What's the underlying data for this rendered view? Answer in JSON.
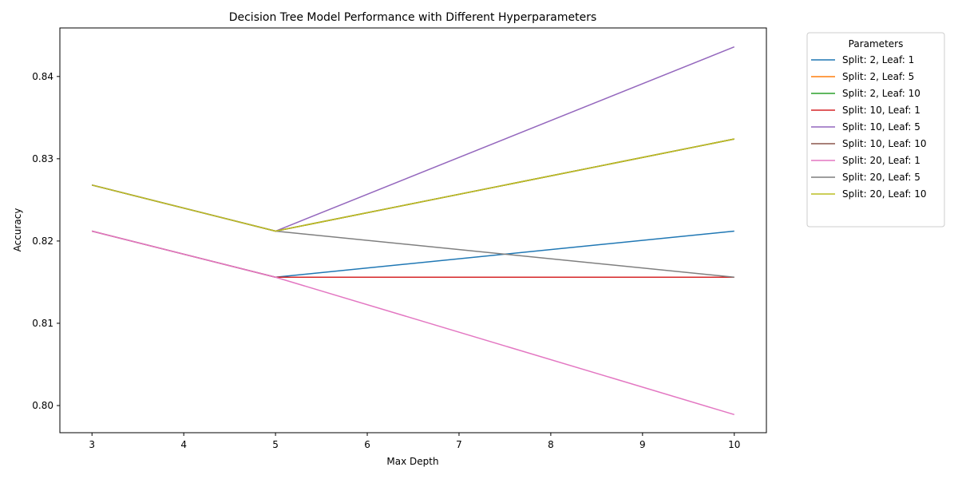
{
  "chart_data": {
    "type": "line",
    "title": "Decision Tree Model Performance with Different Hyperparameters",
    "xlabel": "Max Depth",
    "ylabel": "Accuracy",
    "x": [
      3,
      5,
      10
    ],
    "xlim": [
      2.65,
      10.35
    ],
    "ylim": [
      0.7967,
      0.8459
    ],
    "xticks": [
      3,
      4,
      5,
      6,
      7,
      8,
      9,
      10
    ],
    "yticks": [
      0.8,
      0.81,
      0.82,
      0.83,
      0.84
    ],
    "ytick_labels": [
      "0.80",
      "0.81",
      "0.82",
      "0.83",
      "0.84"
    ],
    "grid": false,
    "legend": {
      "title": "Parameters",
      "placement": "outside-upper-right"
    },
    "series": [
      {
        "name": "Split: 2, Leaf: 1",
        "color": "#1f77b4",
        "values": [
          0.8212,
          0.8156,
          0.8212
        ]
      },
      {
        "name": "Split: 2, Leaf: 5",
        "color": "#ff7f0e",
        "values": [
          0.8268,
          0.8212,
          0.8324
        ]
      },
      {
        "name": "Split: 2, Leaf: 10",
        "color": "#2ca02c",
        "values": [
          0.8268,
          0.8212,
          0.8324
        ]
      },
      {
        "name": "Split: 10, Leaf: 1",
        "color": "#d62728",
        "values": [
          0.8212,
          0.8156,
          0.8156
        ]
      },
      {
        "name": "Split: 10, Leaf: 5",
        "color": "#9467bd",
        "values": [
          0.8268,
          0.8212,
          0.8436
        ]
      },
      {
        "name": "Split: 10, Leaf: 10",
        "color": "#8c564b",
        "values": [
          0.8268,
          0.8212,
          0.8324
        ]
      },
      {
        "name": "Split: 20, Leaf: 1",
        "color": "#e377c2",
        "values": [
          0.8212,
          0.8156,
          0.7989
        ]
      },
      {
        "name": "Split: 20, Leaf: 5",
        "color": "#7f7f7f",
        "values": [
          0.8268,
          0.8212,
          0.8156
        ]
      },
      {
        "name": "Split: 20, Leaf: 10",
        "color": "#bcbd22",
        "values": [
          0.8268,
          0.8212,
          0.8324
        ]
      }
    ]
  }
}
